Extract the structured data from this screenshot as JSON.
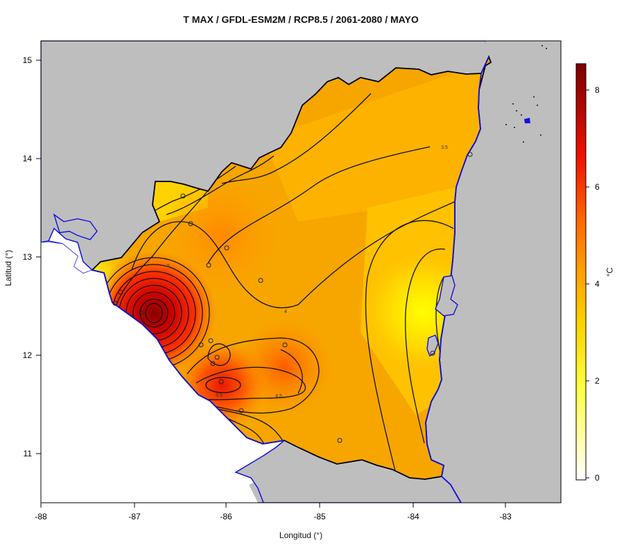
{
  "title": "T MAX / GFDL-ESM2M / RCP8.5 / 2061-2080 / MAYO",
  "x_axis": {
    "label": "Longitud (°)",
    "ticks": [
      "-88",
      "-87",
      "-86",
      "-85",
      "-84",
      "-83"
    ]
  },
  "y_axis": {
    "label": "Latitud (°)",
    "ticks": [
      "11",
      "12",
      "13",
      "14",
      "15"
    ]
  },
  "colorbar": {
    "unit": "°C",
    "ticks": [
      "0",
      "2",
      "4",
      "6",
      "8"
    ]
  },
  "contour_labels": [
    "3.5",
    "4",
    "4.5",
    "5",
    "5.5"
  ],
  "colors": {
    "land_outside": "#bebebe",
    "coast_line": "#1010e0",
    "yellow": "#ffff00",
    "orange": "#f7a300",
    "red": "#e01000",
    "dark_red": "#800000"
  },
  "stations_shown": 22
}
